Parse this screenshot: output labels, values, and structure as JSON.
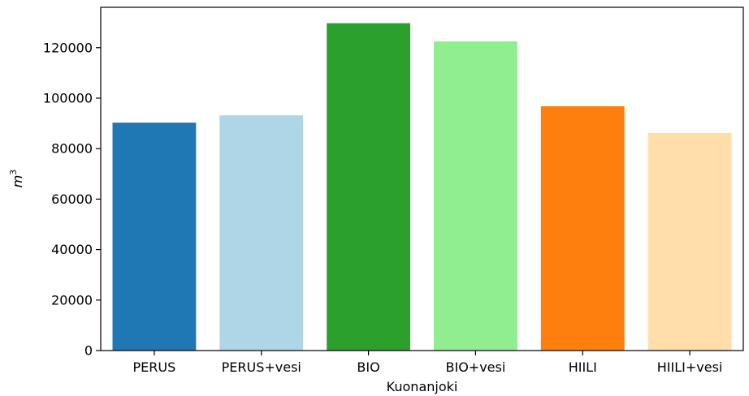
{
  "chart_data": {
    "type": "bar",
    "categories": [
      "PERUS",
      "PERUS+vesi",
      "BIO",
      "BIO+vesi",
      "HIILI",
      "HIILI+vesi"
    ],
    "values": [
      90300,
      93200,
      129700,
      122500,
      96800,
      86200
    ],
    "colors": [
      "#1f77b4",
      "#aed6e6",
      "#2ca02c",
      "#90ee90",
      "#ff7f0e",
      "#ffdeaa"
    ],
    "xlabel": "Kuonanjoki",
    "ylabel_base": "m",
    "ylabel_exponent": "3",
    "ylim": [
      0,
      136000
    ],
    "yticks": [
      0,
      20000,
      40000,
      60000,
      80000,
      100000,
      120000
    ],
    "ytick_labels": [
      "0",
      "20000",
      "40000",
      "60000",
      "80000",
      "100000",
      "120000"
    ],
    "grid": false,
    "legend": "none"
  }
}
